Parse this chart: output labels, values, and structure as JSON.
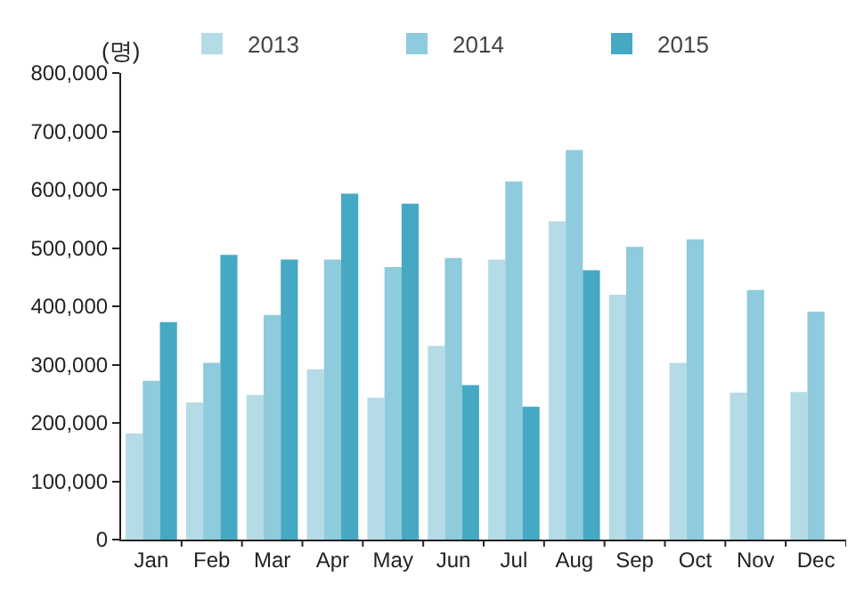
{
  "chart_data": {
    "type": "bar",
    "ylabel": "(명)",
    "categories": [
      "Jan",
      "Feb",
      "Mar",
      "Apr",
      "May",
      "Jun",
      "Jul",
      "Aug",
      "Sep",
      "Oct",
      "Nov",
      "Dec"
    ],
    "series": [
      {
        "name": "2013",
        "color": "#b5dbe6",
        "values": [
          182000,
          235000,
          248000,
          292000,
          243000,
          332000,
          480000,
          546000,
          420000,
          303000,
          252000,
          253000
        ]
      },
      {
        "name": "2014",
        "color": "#8ecbdc",
        "values": [
          272000,
          303000,
          385000,
          480000,
          467000,
          483000,
          614000,
          668000,
          502000,
          515000,
          428000,
          391000
        ]
      },
      {
        "name": "2015",
        "color": "#46a9c3",
        "values": [
          373000,
          488000,
          480000,
          593000,
          576000,
          265000,
          228000,
          462000,
          null,
          null,
          null,
          null
        ]
      }
    ],
    "ylim": [
      0,
      800000
    ],
    "yticks": [
      {
        "value": 0,
        "label": "0"
      },
      {
        "value": 100000,
        "label": "100,000"
      },
      {
        "value": 200000,
        "label": "200,000"
      },
      {
        "value": 300000,
        "label": "300,000"
      },
      {
        "value": 400000,
        "label": "400,000"
      },
      {
        "value": 500000,
        "label": "500,000"
      },
      {
        "value": 600000,
        "label": "600,000"
      },
      {
        "value": 700000,
        "label": "700,000"
      },
      {
        "value": 800000,
        "label": "800,000"
      }
    ],
    "grid": false,
    "legend": "top"
  }
}
